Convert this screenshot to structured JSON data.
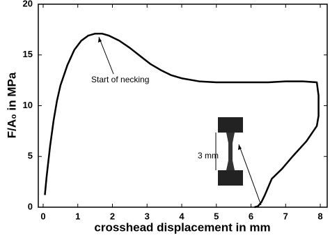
{
  "chart_data": {
    "type": "line",
    "x_label": "crosshead displacement in mm",
    "y_label": "F/A₀ in MPa",
    "annotations": [
      "Start of necking",
      "3 mm"
    ],
    "x": [
      0.05,
      0.1,
      0.2,
      0.3,
      0.4,
      0.5,
      0.7,
      0.9,
      1.1,
      1.3,
      1.5,
      1.7,
      1.9,
      2.2,
      2.5,
      2.8,
      3.1,
      3.4,
      3.7,
      4.0,
      4.5,
      5.0,
      5.5,
      6.0,
      6.5,
      7.0,
      7.5,
      7.9,
      7.95,
      7.95,
      7.9,
      7.6,
      7.2,
      6.9,
      6.6,
      6.5,
      6.4,
      6.3,
      6.2,
      6.1
    ],
    "series": [
      {
        "color": "#000000",
        "values": [
          1.2,
          3,
          6,
          8.5,
          10.5,
          12,
          14,
          15.5,
          16.4,
          16.9,
          17.1,
          17.1,
          16.9,
          16.4,
          15.7,
          14.9,
          14.1,
          13.5,
          13.0,
          12.7,
          12.4,
          12.3,
          12.3,
          12.3,
          12.3,
          12.4,
          12.4,
          12.3,
          11,
          9,
          8,
          6.5,
          5.0,
          3.8,
          2.8,
          2,
          1.2,
          0.5,
          0.1,
          0
        ]
      }
    ],
    "xlim": [
      -0.14,
      8.2
    ],
    "ylim": [
      0,
      20
    ],
    "xticks": [
      0,
      1,
      2,
      3,
      4,
      5,
      6,
      7,
      8
    ],
    "yticks": [
      0,
      5,
      10,
      15,
      20
    ]
  }
}
